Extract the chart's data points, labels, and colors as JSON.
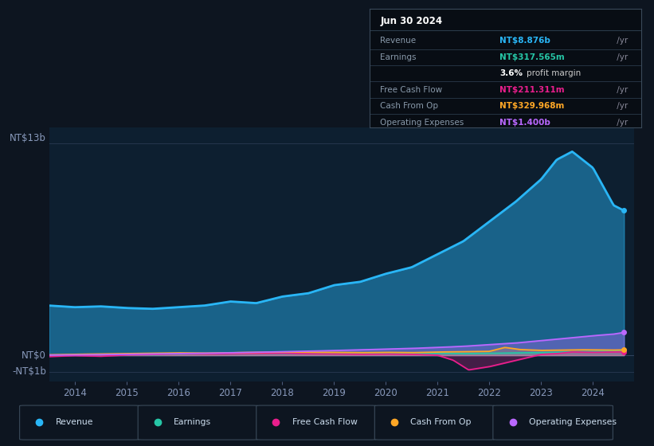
{
  "bg_color": "#0d1520",
  "plot_bg": "#0d1f30",
  "title": "Jun 30 2024",
  "ylim": [
    -1600,
    14000
  ],
  "xlim": [
    2013.5,
    2024.8
  ],
  "xticks": [
    2014,
    2015,
    2016,
    2017,
    2018,
    2019,
    2020,
    2021,
    2022,
    2023,
    2024
  ],
  "ytop_label": "NT$13b",
  "ytop_val": 13000,
  "ymid_label": "NT$0",
  "ymid_val": 0,
  "ybot_label": "-NT$1b",
  "ybot_val": -1000,
  "colors": {
    "revenue": "#29b6f6",
    "earnings": "#26c6a6",
    "free_cash_flow": "#e91e8c",
    "cash_from_op": "#ffa726",
    "operating_expenses": "#ba68ff"
  },
  "rev_x": [
    2013.5,
    2014.0,
    2014.5,
    2015.0,
    2015.5,
    2016.0,
    2016.5,
    2017.0,
    2017.5,
    2018.0,
    2018.5,
    2019.0,
    2019.5,
    2020.0,
    2020.5,
    2021.0,
    2021.5,
    2022.0,
    2022.5,
    2023.0,
    2023.3,
    2023.6,
    2024.0,
    2024.4,
    2024.6
  ],
  "rev_y": [
    3050,
    2950,
    3000,
    2900,
    2850,
    2950,
    3050,
    3300,
    3200,
    3600,
    3800,
    4300,
    4500,
    5000,
    5400,
    6200,
    7000,
    8200,
    9400,
    10800,
    12000,
    12500,
    11500,
    9200,
    8876
  ],
  "earn_x": [
    2013.5,
    2014.0,
    2014.5,
    2015.0,
    2015.5,
    2016.0,
    2016.5,
    2017.0,
    2017.5,
    2018.0,
    2018.5,
    2019.0,
    2019.5,
    2020.0,
    2020.5,
    2021.0,
    2021.5,
    2022.0,
    2022.5,
    2023.0,
    2023.5,
    2024.0,
    2024.4,
    2024.6
  ],
  "earn_y": [
    -20,
    30,
    10,
    40,
    20,
    60,
    50,
    70,
    80,
    100,
    90,
    80,
    100,
    120,
    110,
    130,
    100,
    120,
    140,
    160,
    200,
    230,
    280,
    317
  ],
  "fcf_x": [
    2013.5,
    2014.0,
    2014.5,
    2015.0,
    2015.5,
    2016.0,
    2016.5,
    2017.0,
    2017.5,
    2018.0,
    2018.5,
    2019.0,
    2019.5,
    2020.0,
    2020.5,
    2021.0,
    2021.3,
    2021.6,
    2022.0,
    2022.4,
    2022.8,
    2023.0,
    2023.3,
    2023.6,
    2024.0,
    2024.4,
    2024.6
  ],
  "fcf_y": [
    -80,
    -20,
    -60,
    20,
    40,
    80,
    60,
    80,
    100,
    120,
    90,
    80,
    60,
    80,
    60,
    0,
    -300,
    -900,
    -700,
    -400,
    -100,
    50,
    100,
    200,
    180,
    200,
    211
  ],
  "cop_x": [
    2013.5,
    2014.0,
    2014.5,
    2015.0,
    2015.5,
    2016.0,
    2016.5,
    2017.0,
    2017.5,
    2018.0,
    2018.5,
    2019.0,
    2019.5,
    2020.0,
    2020.5,
    2021.0,
    2021.5,
    2022.0,
    2022.3,
    2022.6,
    2023.0,
    2023.4,
    2023.7,
    2024.0,
    2024.4,
    2024.6
  ],
  "cop_y": [
    30,
    60,
    80,
    100,
    120,
    150,
    130,
    160,
    180,
    200,
    190,
    180,
    160,
    180,
    160,
    200,
    220,
    240,
    480,
    350,
    300,
    320,
    340,
    330,
    320,
    329
  ],
  "opex_x": [
    2013.5,
    2014.0,
    2014.5,
    2015.0,
    2015.5,
    2016.0,
    2016.5,
    2017.0,
    2017.5,
    2018.0,
    2018.5,
    2019.0,
    2019.5,
    2020.0,
    2020.5,
    2021.0,
    2021.5,
    2022.0,
    2022.5,
    2023.0,
    2023.5,
    2024.0,
    2024.4,
    2024.6
  ],
  "opex_y": [
    10,
    20,
    40,
    60,
    80,
    100,
    120,
    150,
    180,
    220,
    250,
    290,
    330,
    380,
    420,
    480,
    550,
    650,
    750,
    900,
    1050,
    1200,
    1300,
    1400
  ],
  "info_rows": [
    {
      "label": "Revenue",
      "value": "NT$8.876b",
      "suffix": " /yr",
      "vcolor": "#29b6f6"
    },
    {
      "label": "Earnings",
      "value": "NT$317.565m",
      "suffix": " /yr",
      "vcolor": "#26c6a6"
    },
    {
      "label": "",
      "value": "3.6%",
      "suffix": " profit margin",
      "vcolor": "#ffffff"
    },
    {
      "label": "Free Cash Flow",
      "value": "NT$211.311m",
      "suffix": " /yr",
      "vcolor": "#e91e8c"
    },
    {
      "label": "Cash From Op",
      "value": "NT$329.968m",
      "suffix": " /yr",
      "vcolor": "#ffa726"
    },
    {
      "label": "Operating Expenses",
      "value": "NT$1.400b",
      "suffix": " /yr",
      "vcolor": "#ba68ff"
    }
  ],
  "legend": [
    {
      "label": "Revenue",
      "color": "#29b6f6"
    },
    {
      "label": "Earnings",
      "color": "#26c6a6"
    },
    {
      "label": "Free Cash Flow",
      "color": "#e91e8c"
    },
    {
      "label": "Cash From Op",
      "color": "#ffa726"
    },
    {
      "label": "Operating Expenses",
      "color": "#ba68ff"
    }
  ]
}
